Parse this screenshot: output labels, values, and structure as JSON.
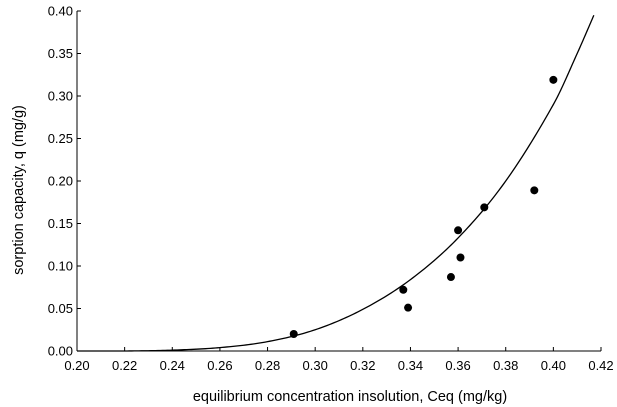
{
  "chart_data": {
    "type": "scatter",
    "title": "",
    "xlabel": "equilibrium concentration insolution, Ceq (mg/kg)",
    "ylabel": "sorption capacity, q (mg/g)",
    "xlim": [
      0.2,
      0.42
    ],
    "ylim": [
      0.0,
      0.4
    ],
    "x_ticks": [
      "0.20",
      "0.22",
      "0.24",
      "0.26",
      "0.28",
      "0.30",
      "0.32",
      "0.34",
      "0.36",
      "0.38",
      "0.40",
      "0.42"
    ],
    "y_ticks": [
      "0.00",
      "0.05",
      "0.10",
      "0.15",
      "0.20",
      "0.25",
      "0.30",
      "0.35",
      "0.40"
    ],
    "grid": false,
    "series": [
      {
        "kind": "points",
        "color": "#000000",
        "x": [
          0.291,
          0.337,
          0.339,
          0.357,
          0.36,
          0.361,
          0.371,
          0.392,
          0.4
        ],
        "y": [
          0.02,
          0.072,
          0.051,
          0.087,
          0.142,
          0.11,
          0.169,
          0.189,
          0.319
        ]
      },
      {
        "kind": "fitted-curve",
        "color": "#000000",
        "x": [
          0.2,
          0.22,
          0.24,
          0.26,
          0.28,
          0.3,
          0.32,
          0.34,
          0.36,
          0.38,
          0.4,
          0.41,
          0.417
        ],
        "y": [
          0.0,
          0.0,
          0.001,
          0.004,
          0.011,
          0.025,
          0.049,
          0.084,
          0.133,
          0.2,
          0.29,
          0.35,
          0.395
        ]
      }
    ]
  }
}
